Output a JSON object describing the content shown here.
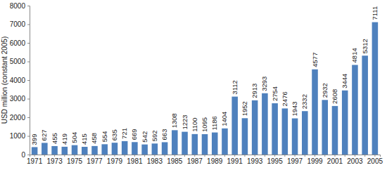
{
  "chart_data": {
    "type": "bar",
    "y_label": "USD million (constant 2005)",
    "categories": [
      "1971",
      null,
      "1973",
      null,
      "1975",
      null,
      "1977",
      null,
      "1979",
      null,
      "1981",
      null,
      "1983",
      null,
      "1985",
      null,
      "1987",
      null,
      "1989",
      null,
      "1991",
      null,
      "1993",
      null,
      "1995",
      null,
      "1997",
      null,
      "1999",
      null,
      "2001",
      null,
      "2003",
      null,
      "2005"
    ],
    "values": [
      399,
      627,
      455,
      419,
      504,
      415,
      458,
      554,
      635,
      721,
      669,
      542,
      592,
      663,
      1308,
      1223,
      1100,
      1095,
      1186,
      1404,
      3112,
      1952,
      2913,
      3293,
      2754,
      2476,
      1943,
      2332,
      4577,
      2932,
      2608,
      3444,
      4814,
      5312,
      7111
    ],
    "color": "#4f81bd",
    "ylim": [
      0,
      8000
    ],
    "yticks": [
      0,
      1000,
      2000,
      3000,
      4000,
      5000,
      6000,
      7000,
      8000
    ],
    "grid": false,
    "data_labels": true
  }
}
